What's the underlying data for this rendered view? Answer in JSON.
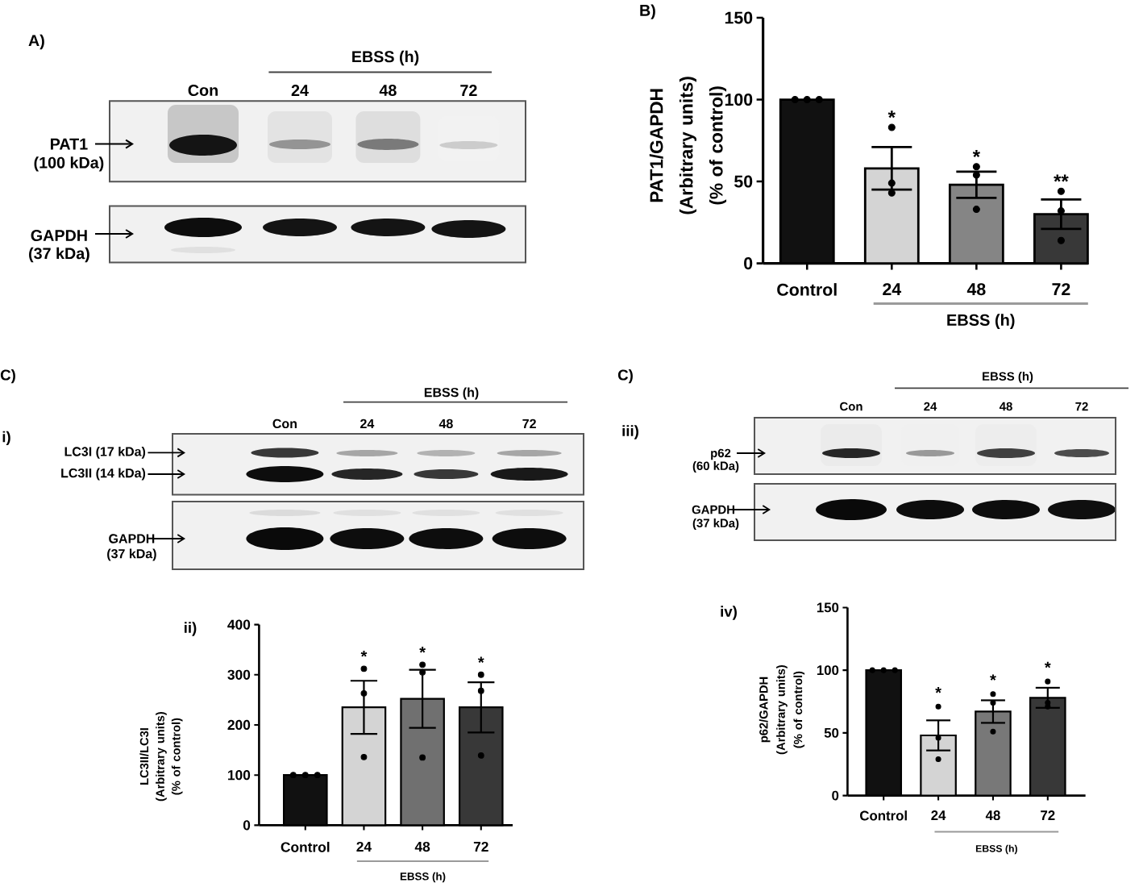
{
  "chart_data": [
    {
      "type": "other",
      "title": "A)",
      "annotations": [
        "EBSS (h)",
        "Con",
        "24",
        "48",
        "72",
        "PAT1",
        "(100 kDa)",
        "GAPDH",
        "(37 kDa)"
      ]
    },
    {
      "type": "bar",
      "title": "B)",
      "ylabel": "PAT1/GAPDH (Arbitrary units) (% of control)",
      "xlabel": "EBSS (h)",
      "categories": [
        "Control",
        "24",
        "48",
        "72"
      ],
      "ylim": [
        0,
        150
      ],
      "yticks": [
        0,
        50,
        100,
        150
      ],
      "series": [
        {
          "type": "bar",
          "values": [
            100,
            58,
            48,
            30
          ],
          "colors": [
            "#111111",
            "#d4d4d4",
            "#858585",
            "#383838"
          ],
          "errors": [
            null,
            13,
            8,
            9
          ]
        },
        {
          "type": "scatter",
          "marker": "circle",
          "color": "#000000",
          "x": [
            "Control",
            "Control",
            "Control",
            "24",
            "24",
            "24",
            "48",
            "48",
            "48",
            "72",
            "72",
            "72"
          ],
          "values": [
            100,
            100,
            100,
            83,
            49,
            43,
            59,
            54,
            33,
            44,
            32,
            14
          ]
        }
      ],
      "annotations": [
        "*",
        "*",
        "**"
      ]
    },
    {
      "type": "other",
      "title": "C)",
      "subtitle": "i)",
      "annotations": [
        "EBSS (h)",
        "Con",
        "24",
        "48",
        "72",
        "LC3I (17 kDa)",
        "LC3II (14 kDa)",
        "GAPDH",
        "(37 kDa)"
      ]
    },
    {
      "type": "other",
      "title": "C)",
      "subtitle": "iii)",
      "annotations": [
        "EBSS (h)",
        "Con",
        "24",
        "48",
        "72",
        "p62",
        "(60 kDa)",
        "GAPDH",
        "(37 kDa)"
      ]
    },
    {
      "type": "bar",
      "title": "ii)",
      "ylabel": "LC3II/LC3I (Arbitrary units) (% of control)",
      "xlabel": "EBSS (h)",
      "categories": [
        "Control",
        "24",
        "48",
        "72"
      ],
      "ylim": [
        0,
        400
      ],
      "yticks": [
        0,
        100,
        200,
        300,
        400
      ],
      "series": [
        {
          "type": "bar",
          "values": [
            100,
            235,
            252,
            235
          ],
          "colors": [
            "#111111",
            "#d4d4d4",
            "#707070",
            "#383838"
          ],
          "errors": [
            null,
            53,
            58,
            50
          ]
        },
        {
          "type": "scatter",
          "marker": "circle",
          "color": "#000000",
          "x": [
            "Control",
            "Control",
            "Control",
            "24",
            "24",
            "24",
            "48",
            "48",
            "48",
            "72",
            "72",
            "72"
          ],
          "values": [
            100,
            100,
            100,
            312,
            263,
            136,
            320,
            305,
            135,
            300,
            268,
            139
          ]
        }
      ],
      "annotations": [
        "*",
        "*",
        "*"
      ]
    },
    {
      "type": "bar",
      "title": "iv)",
      "ylabel": "p62/GAPDH (Arbitrary units) (% of control)",
      "xlabel": "EBSS (h)",
      "categories": [
        "Control",
        "24",
        "48",
        "72"
      ],
      "ylim": [
        0,
        150
      ],
      "yticks": [
        0,
        50,
        100,
        150
      ],
      "series": [
        {
          "type": "bar",
          "values": [
            100,
            48,
            67,
            78
          ],
          "colors": [
            "#111111",
            "#d4d4d4",
            "#787878",
            "#383838"
          ],
          "errors": [
            null,
            12,
            9,
            8
          ]
        },
        {
          "type": "scatter",
          "marker": "circle",
          "color": "#000000",
          "x": [
            "Control",
            "Control",
            "Control",
            "24",
            "24",
            "24",
            "48",
            "48",
            "48",
            "72",
            "72",
            "72"
          ],
          "values": [
            100,
            100,
            100,
            71,
            46,
            29,
            81,
            74,
            51,
            91,
            74,
            71
          ]
        }
      ],
      "annotations": [
        "*",
        "*",
        "*"
      ]
    }
  ]
}
